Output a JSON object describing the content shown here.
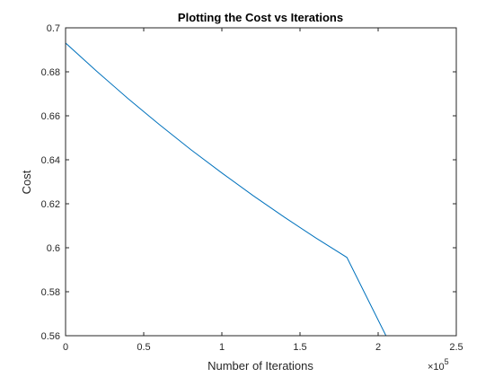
{
  "chart_data": {
    "type": "line",
    "title": "Plotting the Cost vs Iterations",
    "xlabel": "Number of Iterations",
    "ylabel": "Cost",
    "x_multiplier": {
      "base": "×10",
      "exponent": "5"
    },
    "xlim": [
      0,
      250000
    ],
    "ylim": [
      0.56,
      0.7
    ],
    "x_ticks": [
      0,
      50000,
      100000,
      150000,
      200000,
      250000
    ],
    "x_tick_labels": [
      "0",
      "0.5",
      "1",
      "1.5",
      "2",
      "2.5"
    ],
    "y_ticks": [
      0.56,
      0.58,
      0.6,
      0.62,
      0.64,
      0.66,
      0.68,
      0.7
    ],
    "y_tick_labels": [
      "0.56",
      "0.58",
      "0.6",
      "0.62",
      "0.64",
      "0.66",
      "0.68",
      "0.7"
    ],
    "grid": false,
    "series": [
      {
        "color": "#0072BD",
        "x": [
          0,
          20000,
          40000,
          60000,
          80000,
          100000,
          120000,
          140000,
          160000,
          180000,
          205000
        ],
        "values": [
          0.6931,
          0.6802,
          0.6678,
          0.656,
          0.6447,
          0.634,
          0.6237,
          0.6139,
          0.6045,
          0.5956,
          0.56
        ]
      }
    ]
  }
}
